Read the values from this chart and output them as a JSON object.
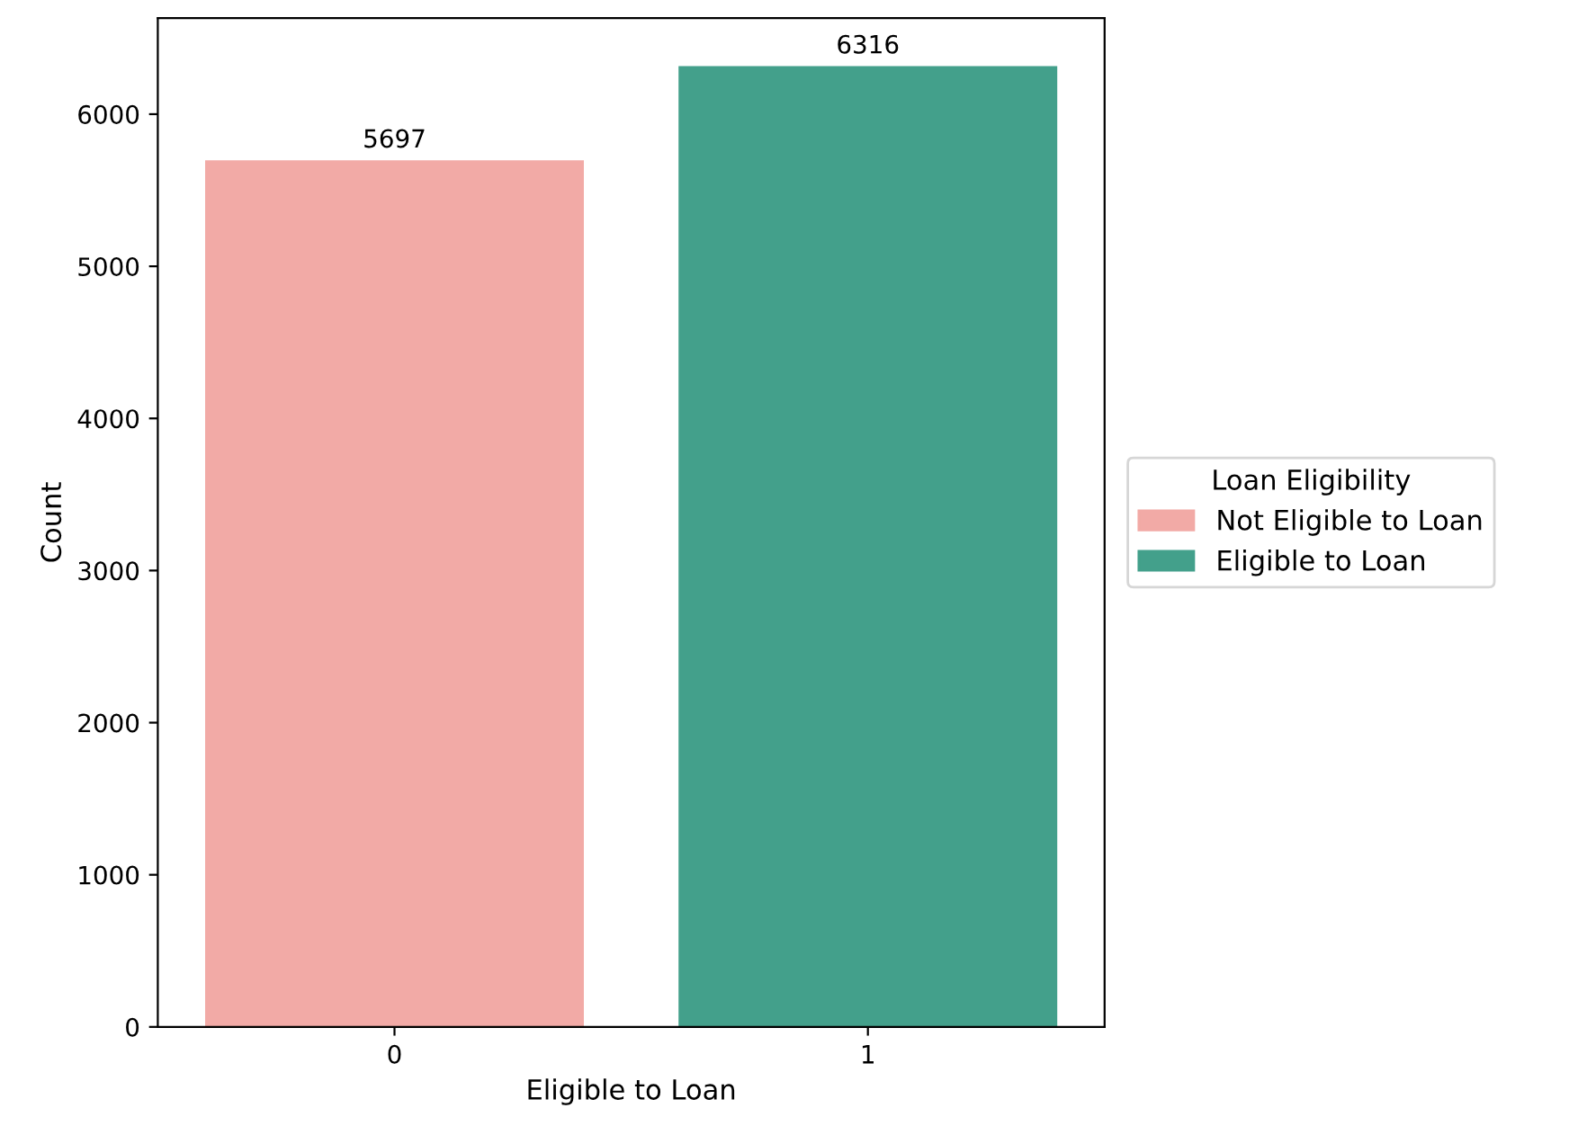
{
  "chart_data": {
    "type": "bar",
    "xlabel": "Eligible to Loan",
    "ylabel": "Count",
    "legend_title": "Loan Eligibility",
    "categories": [
      "0",
      "1"
    ],
    "series": [
      {
        "name": "Not Eligible to Loan",
        "color": "#f2aaa6",
        "values": [
          5697,
          null
        ]
      },
      {
        "name": "Eligible to Loan",
        "color": "#43a08b",
        "values": [
          null,
          6316
        ]
      }
    ],
    "ylim": [
      0,
      6632
    ],
    "yticks": [
      0,
      1000,
      2000,
      3000,
      4000,
      5000,
      6000
    ],
    "data_labels": true,
    "legend": "right",
    "grid": false
  }
}
